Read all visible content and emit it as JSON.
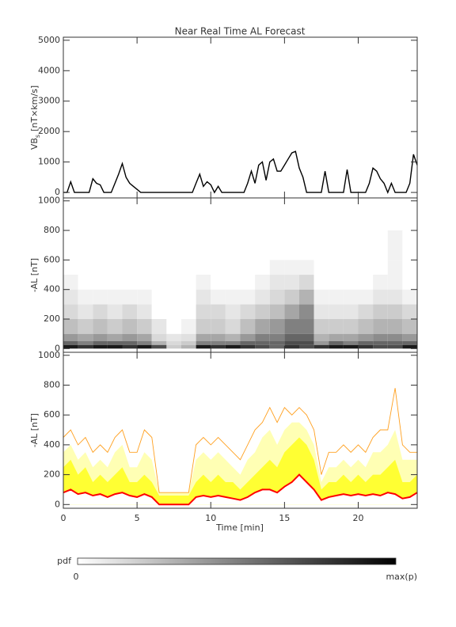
{
  "chart_data": [
    {
      "type": "line",
      "title": "Near Real Time AL Forecast",
      "ylabel": "VB",
      "ylabel_subscript": "s",
      "ylabel_units": "[nT×km/s]",
      "color": "#000000",
      "x": [
        0,
        0.25,
        0.5,
        0.75,
        1,
        1.25,
        1.5,
        1.75,
        2,
        2.25,
        2.5,
        2.75,
        3,
        3.25,
        3.5,
        3.75,
        4,
        4.25,
        4.5,
        4.75,
        5,
        5.25,
        5.5,
        5.75,
        6,
        6.25,
        6.5,
        6.75,
        7,
        7.25,
        7.5,
        7.75,
        8,
        8.25,
        8.5,
        8.75,
        9,
        9.25,
        9.5,
        9.75,
        10,
        10.25,
        10.5,
        10.75,
        11,
        11.25,
        11.5,
        11.75,
        12,
        12.25,
        12.5,
        12.75,
        13,
        13.25,
        13.5,
        13.75,
        14,
        14.25,
        14.5,
        14.75,
        15,
        15.25,
        15.5,
        15.75,
        16,
        16.25,
        16.5,
        16.75,
        17,
        17.25,
        17.5,
        17.75,
        18,
        18.25,
        18.5,
        18.75,
        19,
        19.25,
        19.5,
        19.75,
        20,
        20.25,
        20.5,
        20.75,
        21,
        21.25,
        21.5,
        21.75,
        22,
        22.25,
        22.5,
        22.75,
        23,
        23.25,
        23.5,
        23.75,
        24
      ],
      "values": [
        0,
        0,
        350,
        0,
        0,
        0,
        0,
        0,
        450,
        300,
        250,
        0,
        0,
        0,
        300,
        600,
        950,
        500,
        300,
        200,
        100,
        0,
        0,
        0,
        0,
        0,
        0,
        0,
        0,
        0,
        0,
        0,
        0,
        0,
        0,
        0,
        300,
        600,
        200,
        350,
        250,
        0,
        200,
        0,
        0,
        0,
        0,
        0,
        0,
        0,
        300,
        700,
        300,
        900,
        1000,
        400,
        1000,
        1100,
        700,
        700,
        900,
        1100,
        1300,
        1350,
        800,
        500,
        0,
        0,
        0,
        0,
        0,
        700,
        0,
        0,
        0,
        0,
        0,
        750,
        0,
        0,
        0,
        0,
        0,
        300,
        800,
        700,
        450,
        300,
        0,
        300,
        0,
        0,
        0,
        0,
        300,
        1250,
        900
      ],
      "xlim": [
        0,
        24
      ],
      "xticks": [
        0,
        5,
        10,
        15,
        20
      ],
      "xtick_labels": false,
      "ylim": [
        -180,
        5100
      ],
      "yticks": [
        0,
        1000,
        2000,
        3000,
        4000,
        5000
      ]
    },
    {
      "type": "heatmap",
      "ylabel": "-AL [nT]",
      "colormap": [
        "#ffffff",
        "#000000"
      ],
      "x_bins": [
        0,
        1,
        2,
        3,
        4,
        5,
        6,
        7,
        8,
        9,
        10,
        11,
        12,
        13,
        14,
        15,
        16,
        17,
        18,
        19,
        20,
        21,
        22,
        23,
        24
      ],
      "y_bins": [
        0,
        25,
        50,
        100,
        200,
        300,
        400,
        500,
        600,
        700,
        800
      ],
      "z": [
        [
          0.9,
          0.6,
          0.4,
          0.25,
          0.15,
          0.1,
          0.05,
          0,
          0,
          0
        ],
        [
          0.8,
          0.5,
          0.35,
          0.2,
          0.1,
          0.05,
          0,
          0,
          0,
          0
        ],
        [
          0.9,
          0.6,
          0.4,
          0.25,
          0.15,
          0.05,
          0,
          0,
          0,
          0
        ],
        [
          0.9,
          0.6,
          0.35,
          0.2,
          0.1,
          0.05,
          0,
          0,
          0,
          0
        ],
        [
          0.8,
          0.6,
          0.4,
          0.25,
          0.15,
          0.05,
          0,
          0,
          0,
          0
        ],
        [
          0.9,
          0.5,
          0.35,
          0.2,
          0.1,
          0.05,
          0,
          0,
          0,
          0
        ],
        [
          0.7,
          0.3,
          0.15,
          0.1,
          0,
          0,
          0,
          0,
          0,
          0
        ],
        [
          0.2,
          0.15,
          0.1,
          0,
          0,
          0,
          0,
          0,
          0,
          0
        ],
        [
          0.3,
          0.2,
          0.12,
          0.05,
          0,
          0,
          0,
          0,
          0,
          0
        ],
        [
          0.9,
          0.5,
          0.35,
          0.2,
          0.15,
          0.1,
          0.05,
          0,
          0,
          0
        ],
        [
          0.8,
          0.5,
          0.35,
          0.2,
          0.15,
          0.05,
          0,
          0,
          0,
          0
        ],
        [
          0.9,
          0.5,
          0.3,
          0.15,
          0.1,
          0.05,
          0,
          0,
          0,
          0
        ],
        [
          0.8,
          0.6,
          0.4,
          0.25,
          0.15,
          0.05,
          0,
          0,
          0,
          0
        ],
        [
          0.7,
          0.6,
          0.5,
          0.35,
          0.2,
          0.1,
          0.05,
          0,
          0,
          0
        ],
        [
          0.6,
          0.6,
          0.5,
          0.4,
          0.25,
          0.15,
          0.1,
          0.05,
          0,
          0
        ],
        [
          0.8,
          0.7,
          0.6,
          0.5,
          0.35,
          0.2,
          0.1,
          0.05,
          0,
          0
        ],
        [
          0.7,
          0.7,
          0.6,
          0.5,
          0.45,
          0.3,
          0.15,
          0.05,
          0,
          0
        ],
        [
          0.8,
          0.4,
          0.3,
          0.2,
          0.1,
          0.05,
          0,
          0,
          0,
          0
        ],
        [
          0.9,
          0.6,
          0.35,
          0.2,
          0.1,
          0.05,
          0,
          0,
          0,
          0
        ],
        [
          0.9,
          0.5,
          0.35,
          0.2,
          0.1,
          0.05,
          0,
          0,
          0,
          0
        ],
        [
          0.8,
          0.6,
          0.4,
          0.25,
          0.15,
          0.05,
          0,
          0,
          0,
          0
        ],
        [
          0.7,
          0.6,
          0.45,
          0.3,
          0.2,
          0.1,
          0.05,
          0,
          0,
          0
        ],
        [
          0.7,
          0.6,
          0.45,
          0.3,
          0.2,
          0.1,
          0.05,
          0.05,
          0.05,
          0.05
        ],
        [
          0.9,
          0.6,
          0.4,
          0.25,
          0.15,
          0.05,
          0,
          0,
          0,
          0
        ]
      ],
      "xlim": [
        0,
        24
      ],
      "xticks": [
        0,
        5,
        10,
        15,
        20
      ],
      "xtick_labels": false,
      "ylim": [
        -25,
        1020
      ],
      "yticks": [
        0,
        200,
        400,
        600,
        800,
        1000
      ]
    },
    {
      "type": "area",
      "ylabel": "-AL [nT]",
      "xlabel": "Time [min]",
      "x": [
        0,
        0.5,
        1,
        1.5,
        2,
        2.5,
        3,
        3.5,
        4,
        4.5,
        5,
        5.5,
        6,
        6.5,
        7,
        7.5,
        8,
        8.5,
        9,
        9.5,
        10,
        10.5,
        11,
        11.5,
        12,
        12.5,
        13,
        13.5,
        14,
        14.5,
        15,
        15.5,
        16,
        16.5,
        17,
        17.5,
        18,
        18.5,
        19,
        19.5,
        20,
        20.5,
        21,
        21.5,
        22,
        22.5,
        23,
        23.5,
        24
      ],
      "series": [
        {
          "style": "area",
          "color": "#ffffb4",
          "values": [
            350,
            400,
            300,
            350,
            250,
            300,
            250,
            350,
            400,
            250,
            250,
            350,
            300,
            80,
            80,
            80,
            80,
            80,
            300,
            350,
            300,
            350,
            300,
            250,
            200,
            300,
            350,
            450,
            500,
            400,
            500,
            550,
            550,
            500,
            400,
            150,
            250,
            250,
            300,
            250,
            300,
            250,
            350,
            350,
            400,
            500,
            300,
            300,
            300
          ]
        },
        {
          "style": "area",
          "color": "#ffff33",
          "values": [
            250,
            300,
            200,
            250,
            150,
            200,
            150,
            200,
            250,
            150,
            150,
            200,
            150,
            60,
            60,
            60,
            60,
            60,
            150,
            200,
            150,
            200,
            150,
            150,
            100,
            150,
            200,
            250,
            300,
            250,
            350,
            400,
            450,
            400,
            300,
            100,
            150,
            150,
            200,
            150,
            200,
            150,
            200,
            200,
            250,
            300,
            150,
            150,
            200
          ]
        },
        {
          "style": "line",
          "color": "#ffa020",
          "values": [
            450,
            500,
            400,
            450,
            350,
            400,
            350,
            450,
            500,
            350,
            350,
            500,
            450,
            80,
            80,
            80,
            80,
            80,
            400,
            450,
            400,
            450,
            400,
            350,
            300,
            400,
            500,
            550,
            650,
            550,
            650,
            600,
            650,
            600,
            500,
            200,
            350,
            350,
            400,
            350,
            400,
            350,
            450,
            500,
            500,
            780,
            400,
            350,
            350
          ]
        },
        {
          "style": "base",
          "color": "#ff0000",
          "values": [
            80,
            100,
            70,
            80,
            60,
            70,
            50,
            70,
            80,
            60,
            50,
            70,
            50,
            0,
            0,
            0,
            0,
            0,
            50,
            60,
            50,
            60,
            50,
            40,
            30,
            50,
            80,
            100,
            100,
            80,
            120,
            150,
            200,
            150,
            100,
            30,
            50,
            60,
            70,
            60,
            70,
            60,
            70,
            60,
            80,
            70,
            40,
            50,
            80
          ]
        }
      ],
      "xlim": [
        0,
        24
      ],
      "xticks": [
        0,
        5,
        10,
        15,
        20
      ],
      "xtick_labels": true,
      "ylim": [
        -25,
        1020
      ],
      "yticks": [
        0,
        200,
        400,
        600,
        800,
        1000
      ]
    }
  ],
  "colorbar": {
    "title": "pdf",
    "min_label": "0",
    "max_label": "max(p)"
  }
}
